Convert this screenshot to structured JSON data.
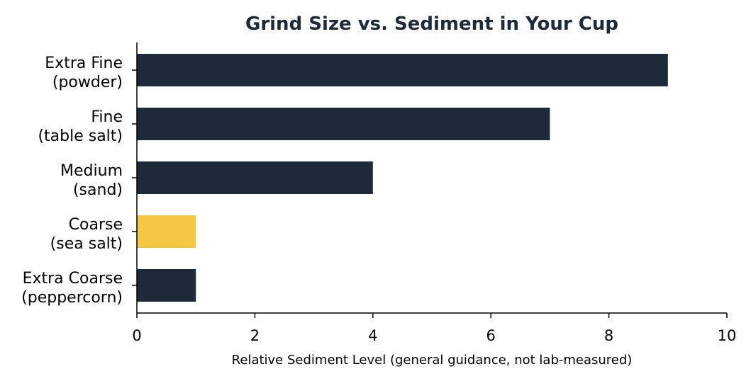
{
  "chart_data": {
    "type": "bar",
    "orientation": "horizontal",
    "title": "Grind Size vs. Sediment in Your Cup",
    "xlabel": "Relative Sediment Level (general guidance, not lab-measured)",
    "ylabel": "",
    "xlim": [
      0,
      10
    ],
    "xticks": [
      "0",
      "2",
      "4",
      "6",
      "8",
      "10"
    ],
    "categories": [
      {
        "line1": "Extra Fine",
        "line2": "(powder)"
      },
      {
        "line1": "Fine",
        "line2": "(table salt)"
      },
      {
        "line1": "Medium",
        "line2": "(sand)"
      },
      {
        "line1": "Coarse",
        "line2": "(sea salt)"
      },
      {
        "line1": "Extra Coarse",
        "line2": "(peppercorn)"
      }
    ],
    "values": [
      9,
      7,
      4,
      1,
      1
    ],
    "highlight_index": 3,
    "grid": false,
    "colors": {
      "bar": "#1c2a3a",
      "highlight": "#f4c842",
      "title": "#1c2a3a",
      "axis": "#000000"
    }
  }
}
